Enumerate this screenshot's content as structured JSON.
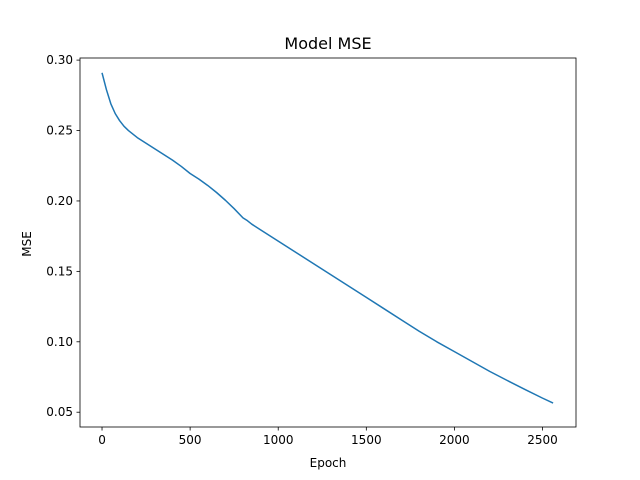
{
  "chart_data": {
    "type": "line",
    "title": "Model MSE",
    "xlabel": "Epoch",
    "ylabel": "MSE",
    "xlim": [
      -125,
      2690
    ],
    "ylim": [
      0.0395,
      0.3015
    ],
    "xticks": [
      0,
      500,
      1000,
      1500,
      2000,
      2500
    ],
    "xtick_labels": [
      "0",
      "500",
      "1000",
      "1500",
      "2000",
      "2500"
    ],
    "yticks": [
      0.05,
      0.1,
      0.15,
      0.2,
      0.25,
      0.3
    ],
    "ytick_labels": [
      "0.05",
      "0.10",
      "0.15",
      "0.20",
      "0.25",
      "0.30"
    ],
    "grid": false,
    "line_color": "#1f77b4",
    "series": [
      {
        "x": [
          0,
          25,
          50,
          75,
          100,
          125,
          150,
          200,
          250,
          300,
          350,
          400,
          450,
          500,
          550,
          600,
          650,
          700,
          750,
          800,
          825,
          850,
          900,
          1000,
          1100,
          1200,
          1300,
          1400,
          1500,
          1600,
          1700,
          1800,
          1900,
          2000,
          2100,
          2200,
          2300,
          2400,
          2500,
          2560
        ],
        "y": [
          0.291,
          0.279,
          0.269,
          0.262,
          0.257,
          0.253,
          0.25,
          0.245,
          0.241,
          0.237,
          0.233,
          0.229,
          0.2245,
          0.2195,
          0.2155,
          0.211,
          0.206,
          0.2005,
          0.1945,
          0.188,
          0.186,
          0.1835,
          0.1795,
          0.1715,
          0.1635,
          0.1555,
          0.1475,
          0.1395,
          0.1315,
          0.1235,
          0.1155,
          0.1075,
          0.1,
          0.093,
          0.086,
          0.079,
          0.0725,
          0.0662,
          0.06,
          0.0565
        ]
      }
    ]
  }
}
